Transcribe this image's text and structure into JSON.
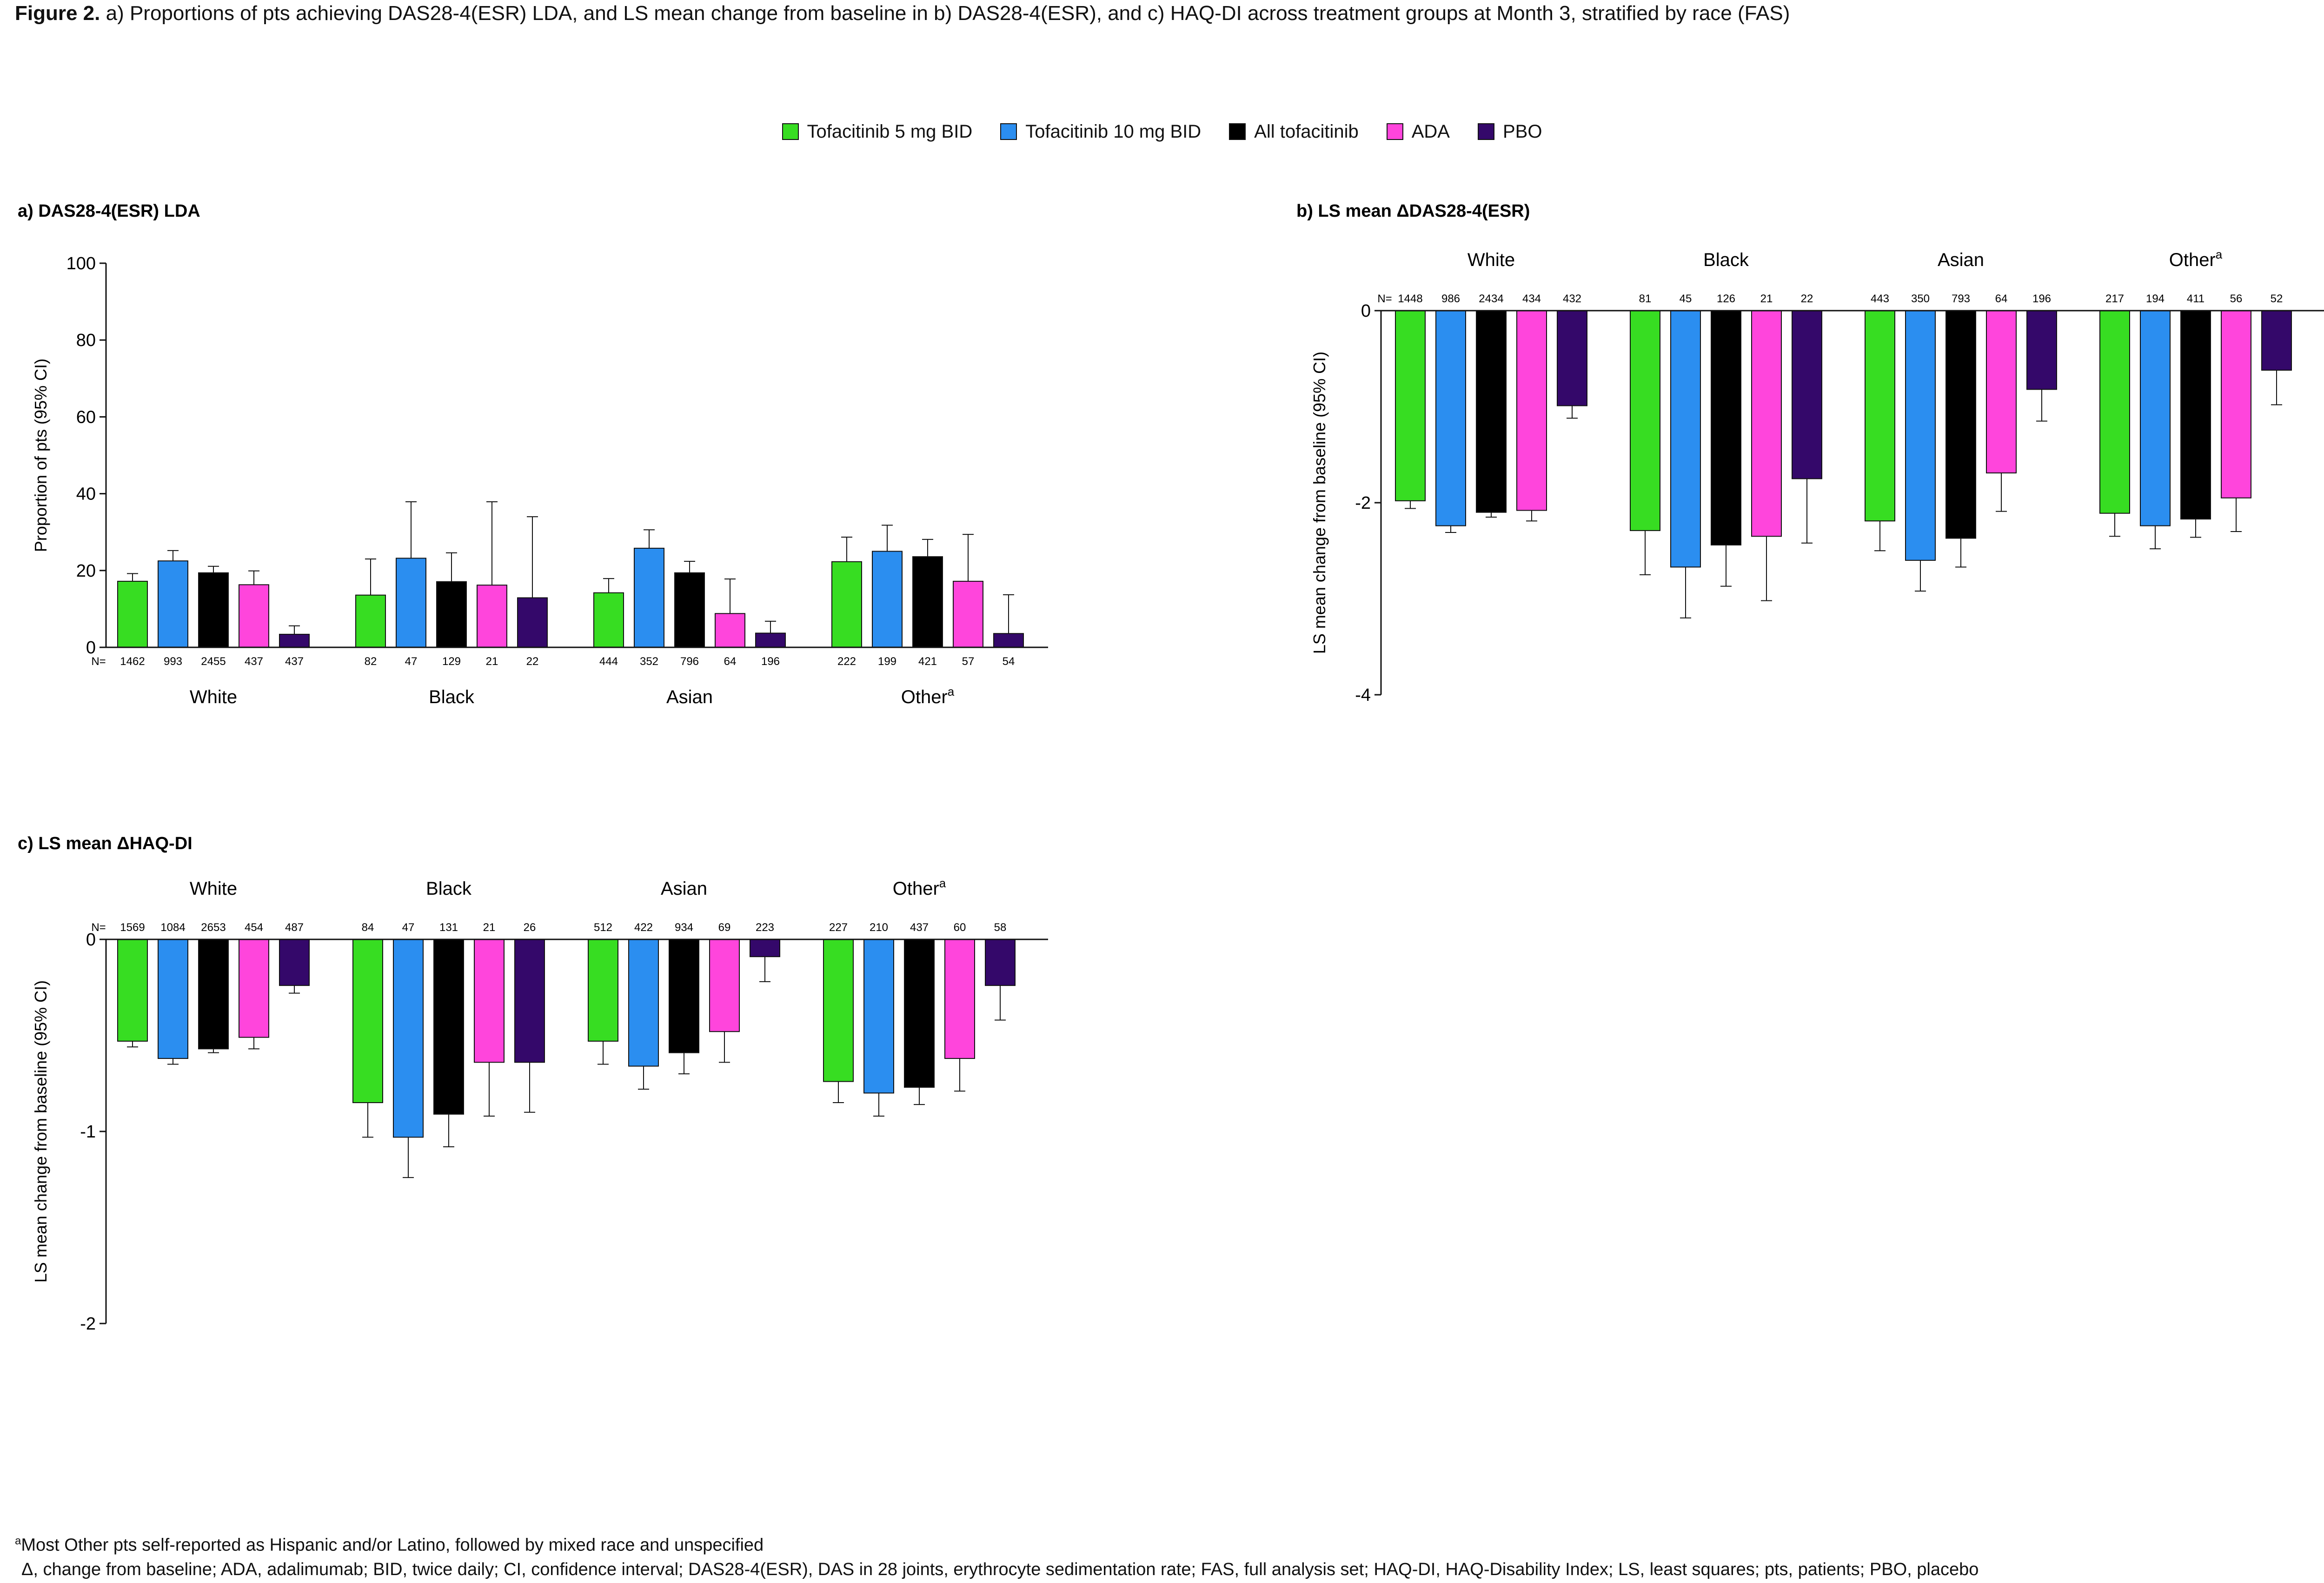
{
  "title": {
    "bold": "Figure 2.",
    "text": " a) Proportions of pts achieving DAS28-4(ESR) LDA, and LS mean change from baseline in b) DAS28-4(ESR), and c) HAQ-DI across treatment groups at Month 3, stratified by race (FAS)"
  },
  "legend": [
    {
      "name": "Tofacitinib 5 mg BID",
      "color": "#37dd22"
    },
    {
      "name": "Tofacitinib 10 mg BID",
      "color": "#2b8ef0"
    },
    {
      "name": "All tofacitinib",
      "color": "#000000"
    },
    {
      "name": "ADA",
      "color": "#ff45dc"
    },
    {
      "name": "PBO",
      "color": "#34086a"
    }
  ],
  "chart_data": [
    {
      "id": "a",
      "type": "bar",
      "title": "a) DAS28-4(ESR) LDA",
      "ylabel": "Proportion of pts (95% CI)",
      "ylim": [
        0,
        100
      ],
      "yticks": [
        0,
        20,
        40,
        60,
        80,
        100
      ],
      "n_prefix": "N=",
      "groups": [
        {
          "label": "White",
          "superscript": "",
          "n": [
            1462,
            993,
            2455,
            437,
            437
          ],
          "values": [
            17.2,
            22.5,
            19.4,
            16.3,
            3.4
          ],
          "ci_low": [
            15.3,
            19.9,
            17.8,
            12.8,
            1.8
          ],
          "ci_high": [
            19.2,
            25.2,
            21.1,
            19.9,
            5.6
          ]
        },
        {
          "label": "Black",
          "superscript": "",
          "n": [
            82,
            47,
            129,
            21,
            22
          ],
          "values": [
            13.6,
            23.2,
            17.1,
            16.2,
            12.9
          ],
          "ci_low": [
            7.5,
            12.6,
            11.0,
            5.4,
            0.0
          ],
          "ci_high": [
            23.0,
            37.9,
            24.6,
            37.9,
            34.0
          ]
        },
        {
          "label": "Asian",
          "superscript": "",
          "n": [
            444,
            352,
            796,
            64,
            196
          ],
          "values": [
            14.2,
            25.8,
            19.4,
            8.8,
            3.7
          ],
          "ci_low": [
            11.1,
            21.2,
            16.7,
            3.4,
            1.5
          ],
          "ci_high": [
            17.9,
            30.6,
            22.4,
            17.8,
            6.8
          ]
        },
        {
          "label": "Other",
          "superscript": "a",
          "n": [
            222,
            199,
            421,
            57,
            54
          ],
          "values": [
            22.3,
            25.0,
            23.6,
            17.2,
            3.6
          ],
          "ci_low": [
            17.0,
            19.3,
            19.6,
            8.6,
            0.0
          ],
          "ci_high": [
            28.7,
            31.8,
            28.1,
            29.4,
            13.7
          ]
        }
      ]
    },
    {
      "id": "b",
      "type": "bar",
      "title": "b)  LS mean ΔDAS28-4(ESR)",
      "ylabel": "LS mean change from baseline (95% CI)",
      "ylim": [
        -4,
        0
      ],
      "yticks": [
        0,
        -2,
        -4
      ],
      "n_prefix": "N=",
      "groups": [
        {
          "label": "White",
          "superscript": "",
          "n": [
            1448,
            986,
            2434,
            434,
            432
          ],
          "values": [
            -1.98,
            -2.24,
            -2.1,
            -2.08,
            -0.99
          ],
          "ci_low": [
            -2.06,
            -2.31,
            -2.15,
            -2.19,
            -1.12
          ],
          "ci_high": [
            -1.9,
            -2.16,
            -2.05,
            -1.97,
            -0.86
          ]
        },
        {
          "label": "Black",
          "superscript": "",
          "n": [
            81,
            45,
            126,
            21,
            22
          ],
          "values": [
            -2.29,
            -2.67,
            -2.44,
            -2.35,
            -1.75
          ],
          "ci_low": [
            -2.75,
            -3.2,
            -2.87,
            -3.02,
            -2.42
          ],
          "ci_high": [
            -1.83,
            -2.14,
            -2.01,
            -1.68,
            -1.08
          ]
        },
        {
          "label": "Asian",
          "superscript": "",
          "n": [
            443,
            350,
            793,
            64,
            196
          ],
          "values": [
            -2.19,
            -2.6,
            -2.37,
            -1.69,
            -0.82
          ],
          "ci_low": [
            -2.5,
            -2.92,
            -2.67,
            -2.09,
            -1.15
          ],
          "ci_high": [
            -1.88,
            -2.28,
            -2.07,
            -1.29,
            -0.49
          ]
        },
        {
          "label": "Other",
          "superscript": "a",
          "n": [
            217,
            194,
            411,
            56,
            52
          ],
          "values": [
            -2.11,
            -2.24,
            -2.17,
            -1.95,
            -0.62
          ],
          "ci_low": [
            -2.35,
            -2.48,
            -2.36,
            -2.3,
            -0.98
          ],
          "ci_high": [
            -1.87,
            -2.0,
            -1.98,
            -1.6,
            -0.26
          ]
        }
      ]
    },
    {
      "id": "c",
      "type": "bar",
      "title": "c) LS mean ΔHAQ-DI",
      "ylabel": "LS mean change from baseline (95% CI)",
      "ylim": [
        -2,
        0
      ],
      "yticks": [
        0,
        -1,
        -2
      ],
      "n_prefix": "N=",
      "groups": [
        {
          "label": "White",
          "superscript": "",
          "n": [
            1569,
            1084,
            2653,
            454,
            487
          ],
          "values": [
            -0.53,
            -0.62,
            -0.57,
            -0.51,
            -0.24
          ],
          "ci_low": [
            -0.56,
            -0.65,
            -0.59,
            -0.57,
            -0.28
          ],
          "ci_high": [
            -0.5,
            -0.59,
            -0.55,
            -0.45,
            -0.2
          ]
        },
        {
          "label": "Black",
          "superscript": "",
          "n": [
            84,
            47,
            131,
            21,
            26
          ],
          "values": [
            -0.85,
            -1.03,
            -0.91,
            -0.64,
            -0.64
          ],
          "ci_low": [
            -1.03,
            -1.24,
            -1.08,
            -0.92,
            -0.9
          ],
          "ci_high": [
            -0.65,
            -0.81,
            -0.74,
            -0.36,
            -0.38
          ]
        },
        {
          "label": "Asian",
          "superscript": "",
          "n": [
            512,
            422,
            934,
            69,
            223
          ],
          "values": [
            -0.53,
            -0.66,
            -0.59,
            -0.48,
            -0.09
          ],
          "ci_low": [
            -0.65,
            -0.78,
            -0.7,
            -0.64,
            -0.22
          ],
          "ci_high": [
            -0.41,
            -0.54,
            -0.48,
            -0.32,
            0.04
          ]
        },
        {
          "label": "Other",
          "superscript": "a",
          "n": [
            227,
            210,
            437,
            60,
            58
          ],
          "values": [
            -0.74,
            -0.8,
            -0.77,
            -0.62,
            -0.24
          ],
          "ci_low": [
            -0.85,
            -0.92,
            -0.86,
            -0.79,
            -0.42
          ],
          "ci_high": [
            -0.63,
            -0.68,
            -0.68,
            -0.45,
            -0.06
          ]
        }
      ]
    }
  ],
  "footnotes": {
    "f1_sup": "a",
    "f1_text": "Most Other pts self-reported as Hispanic and/or Latino, followed by mixed race and unspecified",
    "f2_text": "Δ, change from baseline; ADA, adalimumab; BID, twice daily; CI, confidence interval; DAS28-4(ESR), DAS in 28 joints, erythrocyte sedimentation rate; FAS, full analysis set; HAQ-DI, HAQ-Disability Index; LS, least squares; pts, patients; PBO, placebo"
  }
}
